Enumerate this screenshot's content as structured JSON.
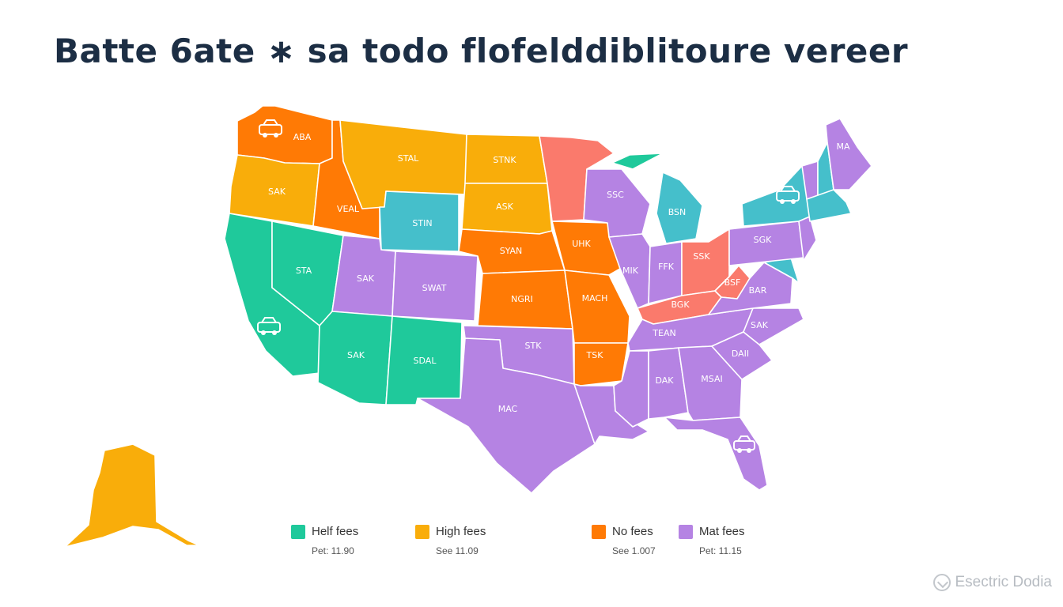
{
  "title": "Batte 6ate ∗ sa todo  flofelddiblitoure vereer",
  "colors": {
    "teal": "#1fc99b",
    "blue": "#45bfcb",
    "yellow": "#f9ad0a",
    "orange": "#ff7a05",
    "salmon": "#fa7a6c",
    "purple": "#b583e3"
  },
  "legend": [
    {
      "label": "Helf fees",
      "sub": "Pet: 11.90",
      "color": "#1fc99b"
    },
    {
      "label": "High fees",
      "sub": "See 11.09",
      "color": "#f9ad0a"
    },
    {
      "label": "No fees",
      "sub": "See 1.007",
      "color": "#ff7a05"
    },
    {
      "label": "Mat fees",
      "sub": "Pet: 11.15",
      "color": "#b583e3"
    }
  ],
  "states": [
    {
      "name": "WA",
      "label": "ABA",
      "color": "#ff7a05"
    },
    {
      "name": "OR",
      "label": "SAK",
      "color": "#f9ad0a"
    },
    {
      "name": "ID",
      "label": "VEAL",
      "color": "#ff7a05"
    },
    {
      "name": "MT",
      "label": "STAL",
      "color": "#f9ad0a"
    },
    {
      "name": "WY",
      "label": "STIN",
      "color": "#45bfcb"
    },
    {
      "name": "CA",
      "label": "",
      "color": "#1fc99b"
    },
    {
      "name": "NV",
      "label": "STA",
      "color": "#1fc99b"
    },
    {
      "name": "UT",
      "label": "SAK",
      "color": "#b583e3"
    },
    {
      "name": "CO",
      "label": "SWAT",
      "color": "#b583e3"
    },
    {
      "name": "AZ",
      "label": "SAK",
      "color": "#1fc99b"
    },
    {
      "name": "NM",
      "label": "SDAL",
      "color": "#1fc99b"
    },
    {
      "name": "ND",
      "label": "STNK",
      "color": "#f9ad0a"
    },
    {
      "name": "SD",
      "label": "ASK",
      "color": "#f9ad0a"
    },
    {
      "name": "NE",
      "label": "SYAN",
      "color": "#ff7a05"
    },
    {
      "name": "KS",
      "label": "NGRI",
      "color": "#ff7a05"
    },
    {
      "name": "OK",
      "label": "STK",
      "color": "#b583e3"
    },
    {
      "name": "TX",
      "label": "MAC",
      "color": "#b583e3"
    },
    {
      "name": "MN",
      "label": "",
      "color": "#fa7a6c"
    },
    {
      "name": "IA",
      "label": "UHK",
      "color": "#ff7a05"
    },
    {
      "name": "MO",
      "label": "MACH",
      "color": "#ff7a05"
    },
    {
      "name": "AR",
      "label": "TSK",
      "color": "#ff7a05"
    },
    {
      "name": "LA",
      "label": "",
      "color": "#b583e3"
    },
    {
      "name": "WI",
      "label": "SSC",
      "color": "#b583e3"
    },
    {
      "name": "MI-UP",
      "label": "",
      "color": "#1fc99b"
    },
    {
      "name": "MI",
      "label": "BSN",
      "color": "#45bfcb"
    },
    {
      "name": "IL",
      "label": "MIK",
      "color": "#b583e3"
    },
    {
      "name": "IN",
      "label": "FFK",
      "color": "#b583e3"
    },
    {
      "name": "OH",
      "label": "SSK",
      "color": "#fa7a6c"
    },
    {
      "name": "KY",
      "label": "BGK",
      "color": "#fa7a6c"
    },
    {
      "name": "WV",
      "label": "BSF",
      "color": "#fa7a6c"
    },
    {
      "name": "TN",
      "label": "TEAN",
      "color": "#b583e3"
    },
    {
      "name": "MS",
      "label": "",
      "color": "#b583e3"
    },
    {
      "name": "AL",
      "label": "DAK",
      "color": "#b583e3"
    },
    {
      "name": "GA",
      "label": "MSAI",
      "color": "#b583e3"
    },
    {
      "name": "FL",
      "label": "",
      "color": "#b583e3"
    },
    {
      "name": "SC",
      "label": "DAII",
      "color": "#b583e3"
    },
    {
      "name": "NC",
      "label": "SAK",
      "color": "#b583e3"
    },
    {
      "name": "VA",
      "label": "BAR",
      "color": "#b583e3"
    },
    {
      "name": "MD",
      "label": "",
      "color": "#45bfcb"
    },
    {
      "name": "PA",
      "label": "SGK",
      "color": "#b583e3"
    },
    {
      "name": "NY",
      "label": "",
      "color": "#45bfcb"
    },
    {
      "name": "NJ",
      "label": "",
      "color": "#b583e3"
    },
    {
      "name": "VT",
      "label": "",
      "color": "#b583e3"
    },
    {
      "name": "NH",
      "label": "",
      "color": "#45bfcb"
    },
    {
      "name": "MA",
      "label": "",
      "color": "#45bfcb"
    },
    {
      "name": "ME",
      "label": "MA",
      "color": "#b583e3"
    },
    {
      "name": "AK",
      "label": "",
      "color": "#f9ad0a"
    }
  ],
  "watermark": "Esectric Dodia"
}
